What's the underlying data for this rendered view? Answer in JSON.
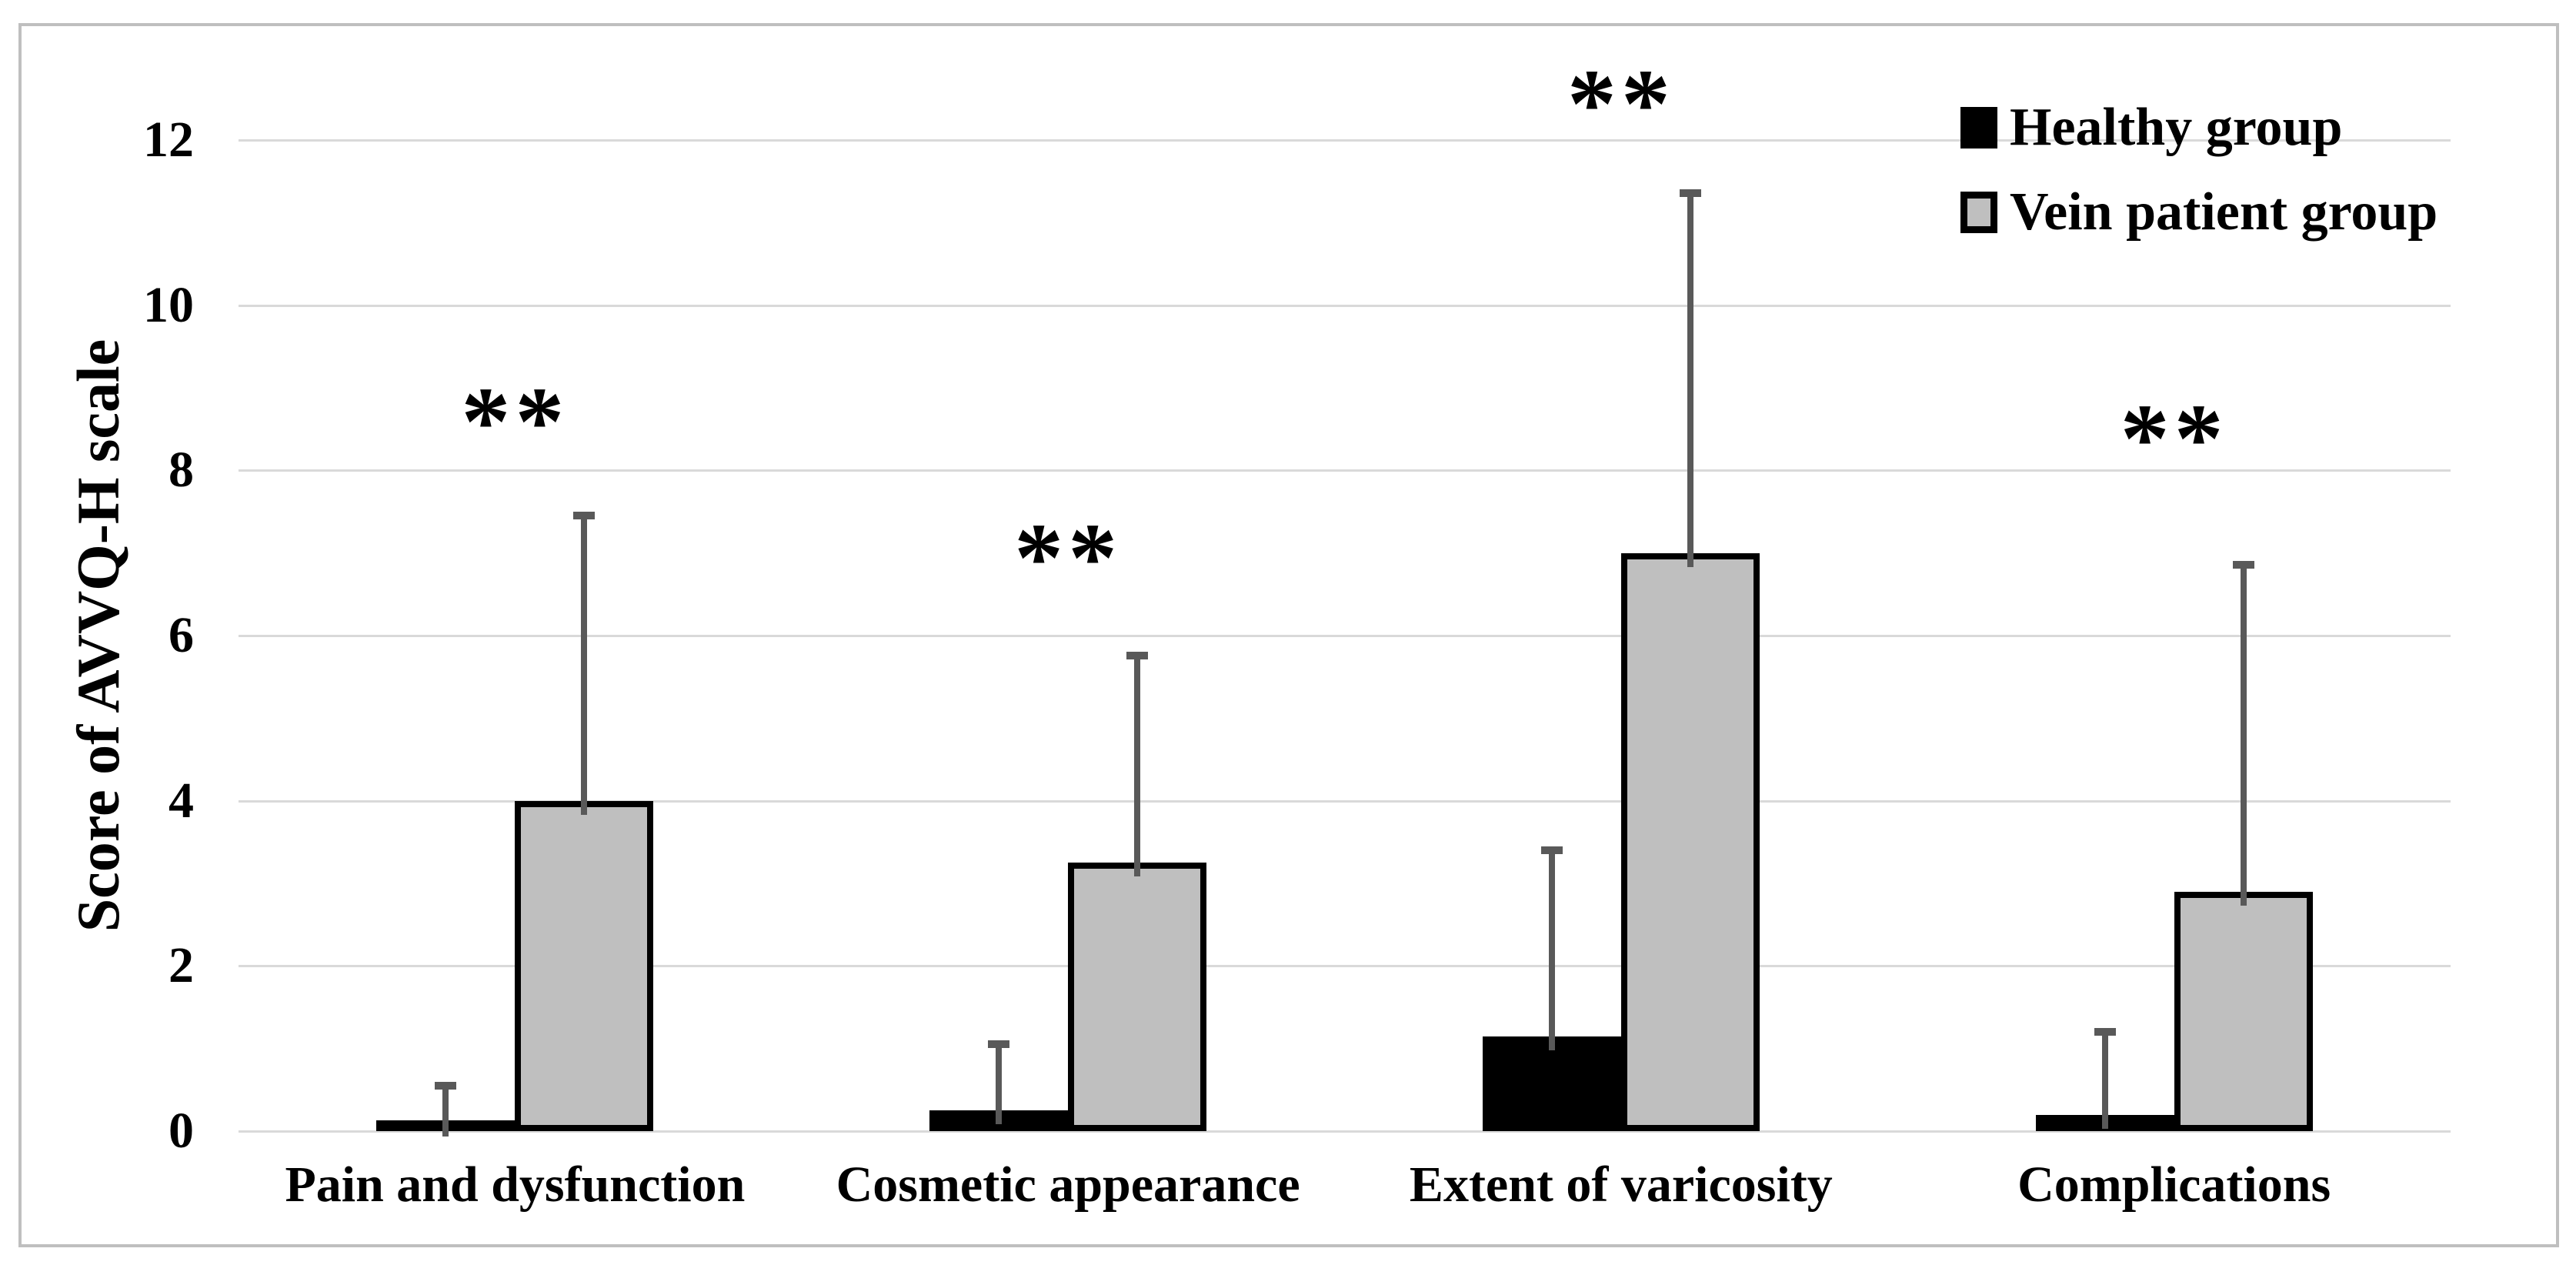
{
  "figure": {
    "y_axis_title": "Score of AVVQ-H scale"
  },
  "chart_data": {
    "type": "bar",
    "title": "",
    "xlabel": "",
    "ylabel": "Score of AVVQ-H scale",
    "categories": [
      "Pain and dysfunction",
      "Cosmetic appearance",
      "Extent of varicosity",
      "Complications"
    ],
    "series": [
      {
        "name": "Healthy group",
        "color": "#000000",
        "values": [
          0.1,
          0.25,
          1.15,
          0.2
        ],
        "sd_upper": [
          0.5,
          0.85,
          2.3,
          1.05
        ]
      },
      {
        "name": "Vein patient group",
        "color": "#BFBFBF",
        "values": [
          4.0,
          3.25,
          7.0,
          2.9
        ],
        "sd_upper": [
          3.5,
          2.55,
          4.4,
          4.0
        ]
      }
    ],
    "significance": {
      "symbol": "**",
      "y_centers": [
        8.7,
        7.05,
        12.55,
        8.5
      ],
      "note": "one marker above each category pair"
    },
    "ylim": [
      0,
      12
    ],
    "yticks": [
      0,
      2,
      4,
      6,
      8,
      10,
      12
    ],
    "grid": "horizontal",
    "gridline_color": "#D9D9D9",
    "error_bar_color": "#595959",
    "frame_border_color": "#BFBFBF",
    "legend_position": "top-right"
  }
}
